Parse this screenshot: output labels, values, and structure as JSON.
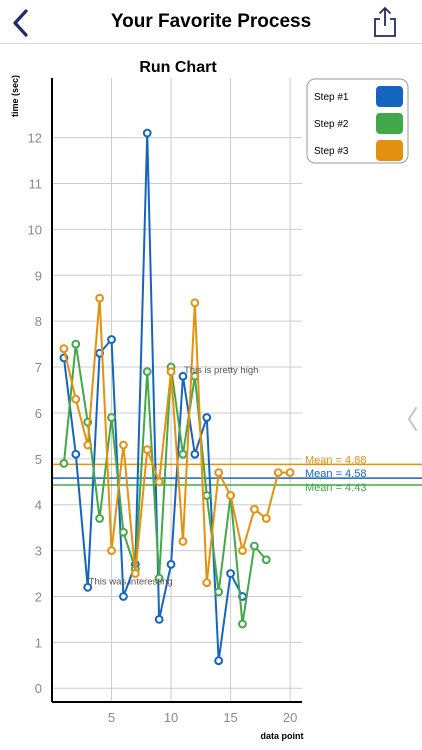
{
  "header": {
    "title": "Your Favorite Process",
    "back_icon": "chevron-left-icon",
    "share_icon": "share-icon"
  },
  "colors": {
    "accent": "#1d2b6b",
    "step1": "#1565c0",
    "step2": "#43a84a",
    "step3": "#e69010",
    "grid": "#cccccc",
    "axis": "#000000",
    "tick_text": "#8a8a8a"
  },
  "chart_data": {
    "type": "line",
    "title": "Run Chart",
    "xlabel": "data point",
    "ylabel": "time (sec)",
    "xlim": [
      0,
      21
    ],
    "ylim": [
      -0.3,
      13.3
    ],
    "x_ticks": [
      5,
      10,
      15,
      20
    ],
    "y_ticks": [
      0,
      1,
      2,
      3,
      4,
      5,
      6,
      7,
      8,
      9,
      10,
      11,
      12
    ],
    "legend_position": "top-right",
    "grid": true,
    "series": [
      {
        "name": "Step #1",
        "color": "#1565c0",
        "x": [
          1,
          2,
          3,
          4,
          5,
          6,
          7,
          8,
          9,
          10,
          11,
          12,
          13,
          14,
          15,
          16
        ],
        "y": [
          7.2,
          5.1,
          2.2,
          7.3,
          7.6,
          2.0,
          2.7,
          12.1,
          1.5,
          2.7,
          6.8,
          5.1,
          5.9,
          0.6,
          2.5,
          2.0
        ],
        "mean": 4.58,
        "mean_label": "Mean = 4.58"
      },
      {
        "name": "Step #2",
        "color": "#43a84a",
        "x": [
          1,
          2,
          3,
          4,
          5,
          6,
          7,
          8,
          9,
          10,
          11,
          12,
          13,
          14,
          15,
          16,
          17,
          18
        ],
        "y": [
          4.9,
          7.5,
          5.8,
          3.7,
          5.9,
          3.4,
          2.6,
          6.9,
          2.4,
          7.0,
          5.1,
          6.8,
          4.2,
          2.1,
          4.2,
          1.4,
          3.1,
          2.8
        ],
        "mean": 4.43,
        "mean_label": "Mean = 4.43"
      },
      {
        "name": "Step #3",
        "color": "#e69010",
        "x": [
          1,
          2,
          3,
          4,
          5,
          6,
          7,
          8,
          9,
          10,
          11,
          12,
          13,
          14,
          15,
          16,
          17,
          18,
          19,
          20
        ],
        "y": [
          7.4,
          6.3,
          5.3,
          8.5,
          3.0,
          5.3,
          2.5,
          5.2,
          4.5,
          6.9,
          3.2,
          8.4,
          2.3,
          4.7,
          4.2,
          3.0,
          3.9,
          3.7,
          4.7,
          4.7
        ],
        "mean": 4.88,
        "mean_label": "Mean = 4.88"
      }
    ],
    "annotations": [
      {
        "text": "This is pretty high",
        "x": 11,
        "y": 6.8
      },
      {
        "text": "This was interesting",
        "x": 3,
        "y": 2.2
      }
    ]
  }
}
